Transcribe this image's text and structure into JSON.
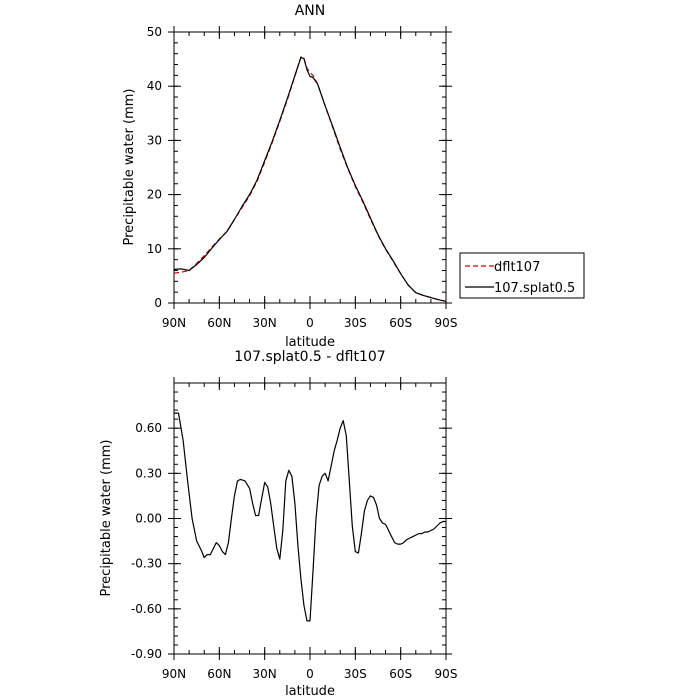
{
  "chart_data": [
    {
      "type": "line",
      "title": "ANN",
      "xlabel": "latitude",
      "ylabel": "Precipitable water (mm)",
      "xlim": [
        90,
        -90
      ],
      "ylim": [
        0,
        50
      ],
      "x_ticks": [
        {
          "value": 90,
          "label": "90N"
        },
        {
          "value": 60,
          "label": "60N"
        },
        {
          "value": 30,
          "label": "30N"
        },
        {
          "value": 0,
          "label": "0"
        },
        {
          "value": -30,
          "label": "30S"
        },
        {
          "value": -60,
          "label": "60S"
        },
        {
          "value": -90,
          "label": "90S"
        }
      ],
      "y_ticks": [
        {
          "value": 0,
          "label": "0"
        },
        {
          "value": 10,
          "label": "10"
        },
        {
          "value": 20,
          "label": "20"
        },
        {
          "value": 30,
          "label": "30"
        },
        {
          "value": 40,
          "label": "40"
        },
        {
          "value": 50,
          "label": "50"
        }
      ],
      "legend": "right",
      "series": [
        {
          "name": "dflt107",
          "color": "#cc0000",
          "dash": true,
          "x": [
            90,
            85,
            80,
            75,
            70,
            65,
            60,
            55,
            50,
            45,
            40,
            35,
            30,
            25,
            20,
            15,
            10,
            6,
            4,
            2,
            0,
            -2,
            -5,
            -10,
            -15,
            -20,
            -25,
            -30,
            -35,
            -40,
            -45,
            -50,
            -55,
            -60,
            -65,
            -70,
            -75,
            -80,
            -85,
            -90
          ],
          "y": [
            5.5,
            5.7,
            6.0,
            7.3,
            8.7,
            10.3,
            11.8,
            13.2,
            15.4,
            17.6,
            19.8,
            22.5,
            26.0,
            29.6,
            33.5,
            37.5,
            41.8,
            45.4,
            45.0,
            43.3,
            42.5,
            42.0,
            40.4,
            36.4,
            32.4,
            28.4,
            24.8,
            21.5,
            18.6,
            15.5,
            12.5,
            9.9,
            7.7,
            5.4,
            3.3,
            1.9,
            1.4,
            1.0,
            0.6,
            0.3
          ]
        },
        {
          "name": "107.splat0.5",
          "color": "#000000",
          "dash": false,
          "x": [
            90,
            85,
            80,
            75,
            70,
            65,
            60,
            55,
            50,
            45,
            40,
            35,
            30,
            25,
            20,
            15,
            10,
            6,
            4,
            2,
            0,
            -2,
            -5,
            -10,
            -15,
            -20,
            -25,
            -30,
            -35,
            -40,
            -45,
            -50,
            -55,
            -60,
            -65,
            -70,
            -75,
            -80,
            -85,
            -90
          ],
          "y": [
            6.2,
            6.3,
            6.0,
            7.1,
            8.4,
            10.1,
            11.7,
            13.2,
            15.4,
            17.8,
            20.0,
            22.7,
            26.3,
            29.8,
            33.7,
            37.7,
            42.0,
            45.3,
            45.1,
            43.0,
            41.8,
            41.6,
            40.4,
            36.4,
            32.6,
            28.7,
            24.9,
            21.7,
            18.8,
            15.7,
            12.6,
            10.0,
            7.8,
            5.4,
            3.3,
            1.9,
            1.4,
            1.0,
            0.6,
            0.3
          ]
        }
      ]
    },
    {
      "type": "line",
      "title": "107.splat0.5 - dflt107",
      "xlabel": "latitude",
      "ylabel": "Precipitable water (mm)",
      "xlim": [
        90,
        -90
      ],
      "ylim": [
        -0.9,
        0.9
      ],
      "x_ticks": [
        {
          "value": 90,
          "label": "90N"
        },
        {
          "value": 60,
          "label": "60N"
        },
        {
          "value": 30,
          "label": "30N"
        },
        {
          "value": 0,
          "label": "0"
        },
        {
          "value": -30,
          "label": "30S"
        },
        {
          "value": -60,
          "label": "60S"
        },
        {
          "value": -90,
          "label": "90S"
        }
      ],
      "y_ticks": [
        {
          "value": -0.9,
          "label": "-0.90"
        },
        {
          "value": -0.6,
          "label": "-0.60"
        },
        {
          "value": -0.3,
          "label": "-0.30"
        },
        {
          "value": 0.0,
          "label": "0.00"
        },
        {
          "value": 0.3,
          "label": "0.30"
        },
        {
          "value": 0.6,
          "label": "0.60"
        }
      ],
      "series": [
        {
          "color": "#000000",
          "dash": false,
          "x": [
            90,
            87,
            84,
            81,
            78,
            75,
            72,
            70,
            68,
            66,
            64,
            62,
            60,
            58,
            56,
            54,
            52,
            50,
            48,
            46,
            43,
            40,
            38,
            36,
            34,
            32,
            30,
            28,
            26,
            24,
            22,
            20,
            18,
            16,
            14,
            12,
            10,
            8,
            6,
            4,
            2,
            0,
            -2,
            -4,
            -6,
            -8,
            -10,
            -12,
            -14,
            -16,
            -18,
            -20,
            -22,
            -24,
            -26,
            -28,
            -30,
            -32,
            -34,
            -36,
            -38,
            -40,
            -42,
            -44,
            -46,
            -48,
            -50,
            -52,
            -54,
            -56,
            -58,
            -60,
            -62,
            -64,
            -66,
            -68,
            -70,
            -72,
            -74,
            -76,
            -78,
            -80,
            -82,
            -84,
            -86,
            -88,
            -90
          ],
          "y": [
            0.7,
            0.7,
            0.52,
            0.25,
            0.0,
            -0.15,
            -0.21,
            -0.26,
            -0.24,
            -0.24,
            -0.2,
            -0.16,
            -0.18,
            -0.22,
            -0.24,
            -0.16,
            0.0,
            0.15,
            0.25,
            0.26,
            0.25,
            0.2,
            0.1,
            0.02,
            0.02,
            0.13,
            0.24,
            0.21,
            0.1,
            -0.05,
            -0.2,
            -0.27,
            -0.08,
            0.25,
            0.32,
            0.28,
            0.1,
            -0.18,
            -0.4,
            -0.58,
            -0.68,
            -0.68,
            -0.35,
            0.0,
            0.22,
            0.28,
            0.3,
            0.25,
            0.35,
            0.45,
            0.52,
            0.6,
            0.65,
            0.55,
            0.25,
            -0.05,
            -0.22,
            -0.23,
            -0.1,
            0.05,
            0.12,
            0.15,
            0.14,
            0.09,
            0.0,
            -0.03,
            -0.04,
            -0.08,
            -0.12,
            -0.16,
            -0.17,
            -0.17,
            -0.16,
            -0.14,
            -0.13,
            -0.12,
            -0.11,
            -0.1,
            -0.1,
            -0.09,
            -0.09,
            -0.08,
            -0.07,
            -0.05,
            -0.03,
            -0.02,
            -0.02
          ]
        }
      ]
    }
  ]
}
